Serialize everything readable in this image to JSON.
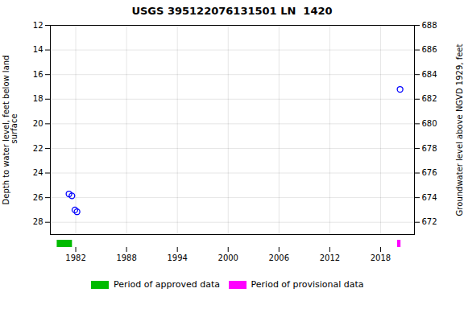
{
  "chart_data": {
    "type": "scatter",
    "title": "USGS 395122076131501 LN  1420",
    "ylabel": "Depth to water level, feet below land\n surface",
    "y2label": "Groundwater level above NGVD 1929, feet",
    "x": [
      1981.2,
      1981.55,
      1981.9,
      1982.15,
      2020.3
    ],
    "values": [
      25.7,
      25.85,
      27.0,
      27.15,
      17.2
    ],
    "color": "blue",
    "marker": "circle",
    "xlim": [
      1979,
      2022
    ],
    "xticks": [
      1982,
      1988,
      1994,
      2000,
      2006,
      2012,
      2018
    ],
    "ylim": [
      29,
      12
    ],
    "yticks": [
      12,
      14,
      16,
      18,
      20,
      22,
      24,
      26,
      28
    ],
    "y2lim": [
      671,
      688
    ],
    "y2ticks": [
      688,
      686,
      684,
      682,
      680,
      678,
      676,
      674,
      672
    ],
    "periods": [
      {
        "name": "Period of approved data",
        "color": "#00bb00",
        "x_start": 1979.8,
        "x_end": 1981.6
      },
      {
        "name": "Period of provisional data",
        "color": "#ff00ff",
        "x_start": 2020.0,
        "x_end": 2020.4
      }
    ],
    "grid": true,
    "legend": "bottom"
  }
}
